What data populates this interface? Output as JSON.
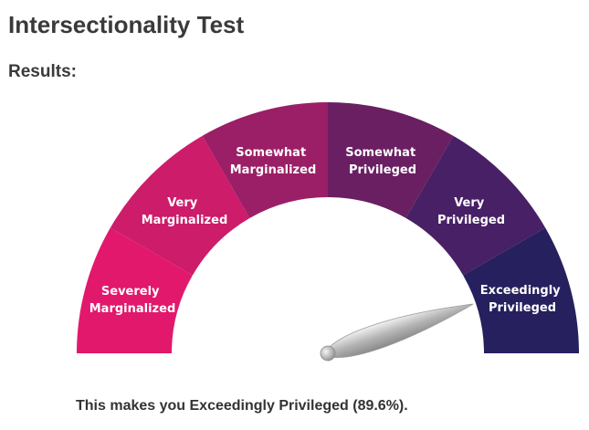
{
  "page": {
    "title": "Intersectionality Test",
    "subtitle": "Results:"
  },
  "gauge": {
    "segments": [
      {
        "line1": "Severely",
        "line2": "Marginalized",
        "color": "#e2186c"
      },
      {
        "line1": "Very",
        "line2": "Marginalized",
        "color": "#cc1c6a"
      },
      {
        "line1": "Somewhat",
        "line2": "Marginalized",
        "color": "#9b1f66"
      },
      {
        "line1": "Somewhat",
        "line2": "Privileged",
        "color": "#6a1f63"
      },
      {
        "line1": "Very",
        "line2": "Privileged",
        "color": "#482065"
      },
      {
        "line1": "Exceedingly",
        "line2": "Privileged",
        "color": "#26205e"
      }
    ],
    "needle_value_percent": 89.6
  },
  "result": {
    "summary": "This makes you Exceedingly Privileged (89.6%)."
  }
}
